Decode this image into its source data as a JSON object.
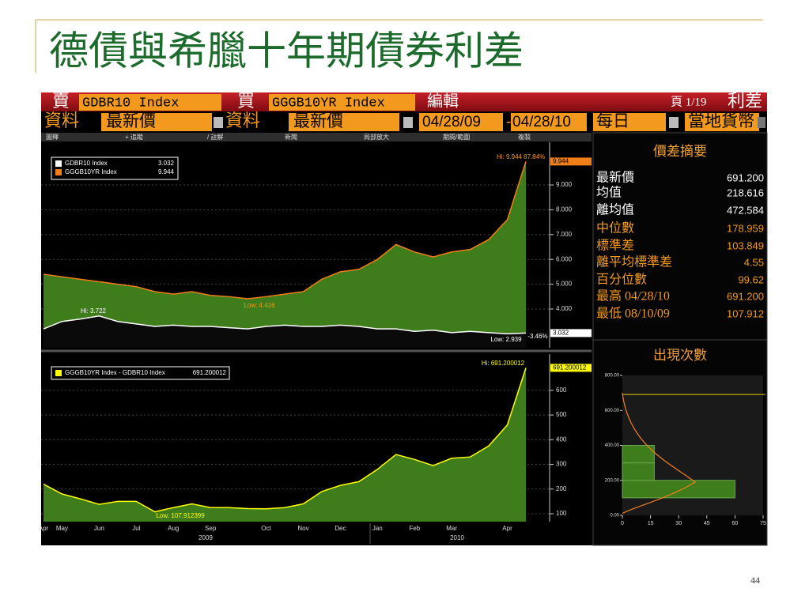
{
  "slide": {
    "title": "德債與希臘十年期債券利差",
    "page_number": "44"
  },
  "toolbar": {
    "sell_label": "賣",
    "sell_field": "GDBR10 Index",
    "buy_label": "買",
    "buy_field": "GGGB10YR Index",
    "edit": "編輯",
    "page": "頁 1/19",
    "view": "利差",
    "data_label_1": "資料",
    "data_field_1": "最新價",
    "data_label_2": "資料",
    "data_field_2": "最新價",
    "start_date": "04/28/09",
    "date_sep": "-",
    "end_date": "04/28/10",
    "period": "每日",
    "currency": "當地貨幣",
    "menu": [
      "圖釋",
      "+ 追蹤",
      "/ 註解",
      "新聞",
      "局部放大",
      "期間/範圍",
      "複製"
    ]
  },
  "stats": {
    "title": "價差摘要",
    "rows": [
      [
        "最新價",
        "691.200"
      ],
      [
        "均值",
        "218.616"
      ],
      [
        "離均值",
        "472.584"
      ],
      [
        "中位數",
        "178.959"
      ],
      [
        "標準差",
        "103.849"
      ],
      [
        "離平均標準差",
        "4.55"
      ],
      [
        "百分位數",
        "99.62"
      ],
      [
        "最高 04/28/10",
        "691.200"
      ],
      [
        "最低 08/10/09",
        "107.912"
      ]
    ]
  },
  "chart_data": [
    {
      "type": "area",
      "series": [
        {
          "name": "GGGB10YR Index",
          "legend_value": "9.944",
          "color": "#f07f1a",
          "fill": "#3f7d1c",
          "axis_label": "9.944",
          "values": [
            5.4,
            5.3,
            5.2,
            5.1,
            5.0,
            4.9,
            4.7,
            4.6,
            4.7,
            4.55,
            4.5,
            4.416,
            4.5,
            4.6,
            4.7,
            5.2,
            5.5,
            5.6,
            6.0,
            6.6,
            6.3,
            6.1,
            6.3,
            6.4,
            6.8,
            7.6,
            9.944
          ]
        },
        {
          "name": "GDBR10 Index",
          "legend_value": "3.032",
          "color": "#ffffff",
          "fill": "#0a0a0a",
          "axis_label": "3.032",
          "values": [
            3.2,
            3.5,
            3.6,
            3.722,
            3.5,
            3.4,
            3.3,
            3.35,
            3.3,
            3.3,
            3.25,
            3.2,
            3.3,
            3.35,
            3.3,
            3.3,
            3.35,
            3.3,
            3.2,
            3.2,
            3.1,
            3.15,
            3.05,
            3.1,
            3.05,
            3.0,
            3.032
          ]
        }
      ],
      "annotations": [
        "Hi: 9.944",
        "87.84%",
        "Low: 4.416",
        "Hi: 3.722",
        "Low: 2.939",
        "-3.46%"
      ],
      "ylim": [
        2.44,
        10.72
      ],
      "yticks": [
        {
          "value": 4,
          "label": "4.000"
        },
        {
          "value": 5,
          "label": "5.000"
        },
        {
          "value": 6,
          "label": "6.000"
        },
        {
          "value": 7,
          "label": "7.000"
        },
        {
          "value": 8,
          "label": "8.000"
        },
        {
          "value": 9,
          "label": "9.000"
        }
      ],
      "grid": true
    },
    {
      "type": "area",
      "categories": [
        "Apr",
        "May",
        null,
        "Jun",
        null,
        "Jul",
        null,
        "Aug",
        null,
        "Sep",
        null,
        null,
        "Oct",
        null,
        "Nov",
        null,
        "Dec",
        null,
        "Jan",
        null,
        "Feb",
        null,
        "Mar",
        null,
        null,
        "Apr",
        null
      ],
      "years": [
        "2009",
        "2010"
      ],
      "series": [
        {
          "name": "GGGB10YR Index - GDBR10 Index",
          "legend_value": "691.200012",
          "color": "#ffff00",
          "fill": "#3f7d1c",
          "axis_label": "691.200012",
          "values": [
            220,
            180,
            160,
            138,
            150,
            150,
            107.912,
            125,
            140,
            125,
            125,
            121,
            120,
            125,
            140,
            190,
            215,
            230,
            280,
            340,
            320,
            295,
            325,
            330,
            375,
            460,
            691.2
          ]
        }
      ],
      "annotations": [
        "Hi: 691.200012",
        "Low: 107.912399"
      ],
      "ylim": [
        68,
        747
      ],
      "yticks": [
        100,
        200,
        300,
        400,
        500,
        600
      ],
      "grid": true
    },
    {
      "type": "histogram",
      "title": "出現次數",
      "orientation": "horizontal",
      "bins": [
        100,
        200,
        300,
        400
      ],
      "values": [
        60,
        17,
        17
      ],
      "color": "#3f7d1c",
      "xlim": [
        0,
        75
      ],
      "xticks": [
        0,
        15,
        30,
        45,
        60,
        75
      ],
      "ylim": [
        0,
        800
      ],
      "yticks": [
        {
          "value": 0,
          "label": "0.00"
        },
        {
          "value": 200,
          "label": "200.00"
        },
        {
          "value": 400,
          "label": "400.00"
        },
        {
          "value": 600,
          "label": "600.00"
        },
        {
          "value": 800,
          "label": "800.00"
        }
      ]
    }
  ]
}
